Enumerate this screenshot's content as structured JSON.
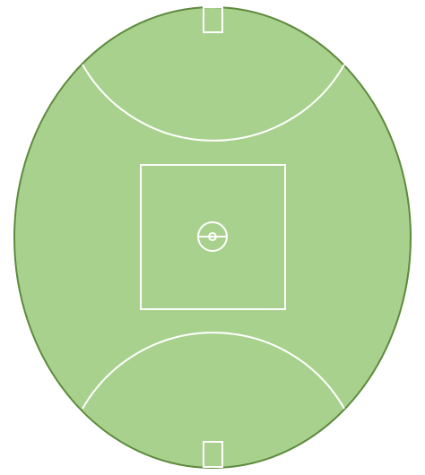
{
  "diagram": {
    "type": "australian-rules-football-field",
    "colors": {
      "grass": "#a9d18e",
      "boundary": "#5e8a3d",
      "lines": "#ffffff",
      "background": "#ffffff"
    },
    "elements": [
      "boundary-oval",
      "top-goal-square",
      "bottom-goal-square",
      "top-50m-arc",
      "bottom-50m-arc",
      "centre-square",
      "centre-circle",
      "centre-dot",
      "centre-line"
    ]
  }
}
